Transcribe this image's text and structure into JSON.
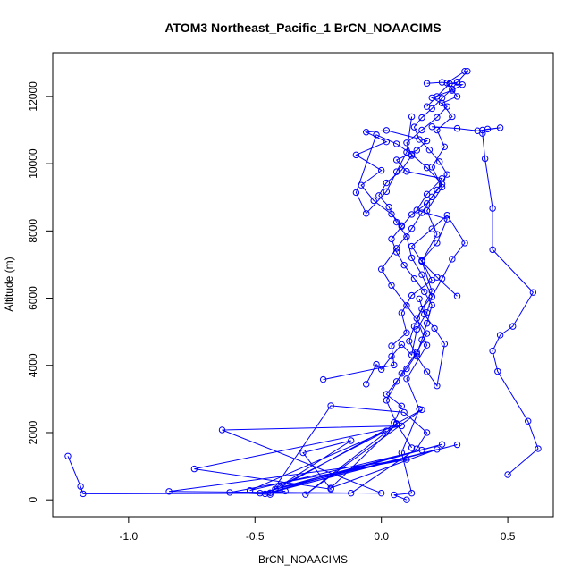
{
  "chart_data": {
    "type": "line",
    "title": "ATOM3 Northeast_Pacific_1 BrCN_NOAACIMS",
    "xlabel": "BrCN_NOAACIMS",
    "ylabel": "Altitude (m)",
    "xlim": [
      -1.3,
      0.68
    ],
    "ylim": [
      -500,
      13300
    ],
    "xticks": [
      -1.0,
      -0.5,
      0.0,
      0.5
    ],
    "xtick_labels": [
      "-1.0",
      "-0.5",
      "0.0",
      "0.5"
    ],
    "yticks": [
      0,
      2000,
      4000,
      6000,
      8000,
      10000,
      12000
    ],
    "ytick_labels": [
      "0",
      "2000",
      "4000",
      "6000",
      "8000",
      "10000",
      "12000"
    ],
    "grid": false,
    "marker": "open-circle",
    "color": "#0000ff",
    "series": [
      {
        "x": [
          0.1,
          0.05,
          0.12,
          0.08,
          0.15,
          0.1,
          0.18,
          0.14,
          0.2,
          0.16,
          0.22,
          0.18,
          0.24,
          0.2,
          0.25,
          0.22,
          0.28,
          0.24,
          0.3,
          0.26,
          0.33,
          0.34,
          0.3,
          0.27,
          0.22,
          0.18
        ],
        "y": [
          0,
          150,
          200,
          1400,
          2700,
          3600,
          4600,
          5400,
          6200,
          7100,
          7900,
          8600,
          9300,
          9900,
          10500,
          11000,
          11400,
          11800,
          12000,
          12400,
          12750,
          12750,
          12420,
          12380,
          12000,
          11700
        ]
      },
      {
        "x": [
          0.5,
          0.62,
          0.58,
          0.46,
          0.44,
          0.47,
          0.52,
          0.6,
          0.44,
          0.44,
          0.41,
          0.4,
          0.4,
          0.42,
          0.47,
          0.38,
          0.3,
          0.2
        ],
        "y": [
          750,
          1520,
          2340,
          3820,
          4430,
          4900,
          5160,
          6170,
          7440,
          8670,
          10150,
          10900,
          11000,
          11030,
          11070,
          10980,
          11050,
          11100
        ]
      },
      {
        "x": [
          -1.24,
          -1.19,
          -1.18,
          -0.12,
          0.14,
          0.18,
          0.09,
          -0.2,
          -0.44,
          -0.6,
          0.1,
          -0.84,
          0.0,
          -0.63,
          0.08,
          -0.74,
          -0.2,
          -0.31,
          -0.12,
          -0.42,
          0.16,
          -0.52,
          0.02,
          -0.46,
          0.24,
          -0.4,
          0.16,
          -0.3,
          0.06,
          -0.2,
          0.22,
          -0.44,
          0.3,
          -0.48,
          -0.38
        ],
        "y": [
          1300,
          400,
          180,
          200,
          1520,
          2000,
          2600,
          2800,
          160,
          220,
          1200,
          250,
          200,
          2080,
          2200,
          920,
          320,
          1400,
          1760,
          320,
          1480,
          280,
          2050,
          180,
          1650,
          370,
          2680,
          160,
          2250,
          350,
          1500,
          210,
          1640,
          200,
          260
        ]
      },
      {
        "x": [
          -0.23,
          0.05,
          0.04,
          0.1,
          0.08,
          0.12,
          0.2,
          0.16,
          0.22,
          0.26,
          0.14,
          0.18,
          0.24,
          0.1,
          0.06,
          0.14,
          0.18,
          0.02,
          -0.06,
          0.02,
          -0.1,
          0.0,
          -0.08,
          -0.03,
          0.04,
          0.08
        ],
        "y": [
          3580,
          4010,
          4580,
          4970,
          5560,
          6080,
          6530,
          7120,
          7640,
          8350,
          8620,
          9090,
          9560,
          9770,
          10110,
          10400,
          10680,
          10990,
          10940,
          10650,
          10260,
          9800,
          9360,
          8900,
          8500,
          8160
        ]
      },
      {
        "x": [
          -0.06,
          -0.02,
          0.0,
          0.04,
          0.08,
          0.12,
          0.14,
          0.18,
          0.2,
          0.16,
          0.12,
          0.1,
          0.06,
          0.03,
          -0.01,
          0.02,
          0.08,
          0.12,
          0.1,
          0.16,
          0.22,
          0.26,
          0.2,
          0.28,
          0.32,
          0.24,
          0.18
        ],
        "y": [
          3440,
          4030,
          3880,
          4270,
          4620,
          4310,
          5070,
          5570,
          6050,
          6700,
          7200,
          7830,
          8260,
          8710,
          9050,
          9430,
          9810,
          10240,
          10620,
          11000,
          11380,
          11700,
          11960,
          12180,
          12350,
          12420,
          12390
        ]
      },
      {
        "x": [
          0.05,
          0.08,
          0.02,
          0.06,
          0.1,
          0.14,
          0.16,
          0.18,
          0.2,
          0.17,
          0.13,
          0.09,
          0.06,
          0.04,
          0.08,
          0.12,
          0.18,
          0.22,
          0.26,
          0.23,
          0.19,
          0.15,
          0.13,
          0.16,
          0.2,
          0.24,
          0.28,
          0.3
        ],
        "y": [
          2300,
          2790,
          3140,
          3520,
          3900,
          4340,
          4760,
          5250,
          5790,
          6190,
          6580,
          6980,
          7370,
          7760,
          8130,
          8490,
          8810,
          9220,
          9680,
          10060,
          10410,
          10720,
          11090,
          11370,
          11640,
          11950,
          12220,
          12430
        ]
      },
      {
        "x": [
          0.12,
          0.06,
          0.02,
          0.08,
          0.14,
          0.18,
          0.1,
          0.04,
          0.0,
          0.06,
          0.12,
          0.16,
          0.2,
          0.24,
          0.18,
          0.12,
          0.06,
          -0.02,
          -0.1,
          -0.06,
          0.02,
          0.06,
          0.1,
          0.12
        ],
        "y": [
          1550,
          2270,
          2960,
          3760,
          4390,
          4950,
          5780,
          6380,
          6860,
          7480,
          8070,
          8540,
          9010,
          9390,
          9880,
          10280,
          10590,
          10860,
          9140,
          8520,
          9170,
          9760,
          10340,
          11400
        ]
      },
      {
        "x": [
          0.3,
          0.22,
          0.16,
          0.12,
          0.2,
          0.26,
          0.33,
          0.28,
          0.24,
          0.2,
          0.16,
          0.13,
          0.11,
          0.14,
          0.18,
          0.22,
          0.25,
          0.21,
          0.17,
          0.15
        ],
        "y": [
          6060,
          6620,
          7090,
          7540,
          8060,
          8470,
          7640,
          7160,
          6580,
          6040,
          5680,
          5160,
          4720,
          4270,
          3810,
          3390,
          4640,
          5100,
          5520,
          5980
        ]
      }
    ]
  }
}
